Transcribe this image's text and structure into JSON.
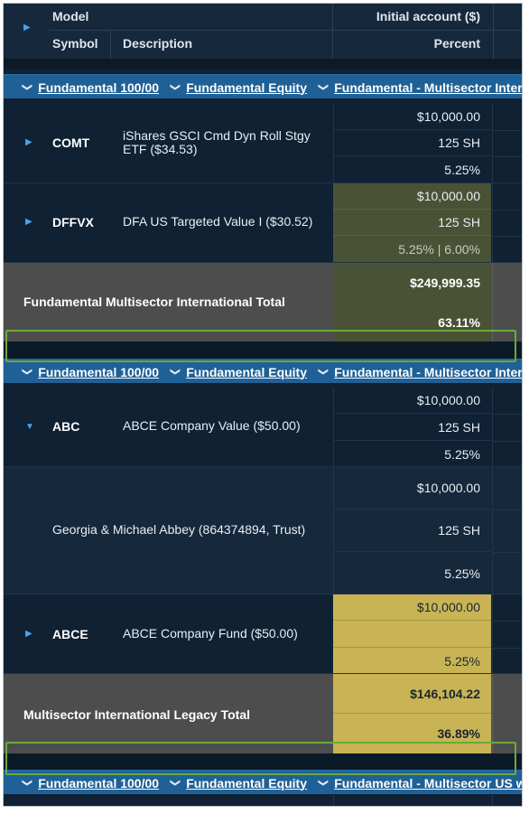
{
  "header": {
    "model": "Model",
    "initial_account": "Initial account ($)",
    "symbol": "Symbol",
    "description": "Description",
    "percent": "Percent"
  },
  "groups": [
    {
      "l1": "Fundamental 100/00",
      "l2": "Fundamental Equity",
      "l3": "Fundamental - Multisector Inter"
    },
    {
      "l1": "Fundamental 100/00",
      "l2": "Fundamental Equity",
      "l3": "Fundamental - Multisector Inter"
    },
    {
      "l1": "Fundamental 100/00",
      "l2": "Fundamental Equity",
      "l3": "Fundamental - Multisector US w"
    }
  ],
  "rows": {
    "comt": {
      "symbol": "COMT",
      "description": "iShares GSCI Cmd Dyn Roll Stgy ETF ($34.53)",
      "amount": "$10,000.00",
      "shares": "125 SH",
      "percent": "5.25%"
    },
    "dffvx": {
      "symbol": "DFFVX",
      "description": "DFA US Targeted Value I ($30.52)",
      "amount": "$10,000.00",
      "shares": "125 SH",
      "percent": "5.25% | 6.00%"
    },
    "abc": {
      "symbol": "ABC",
      "description": "ABCE Company Value ($50.00)",
      "amount": "$10,000.00",
      "shares": "125 SH",
      "percent": "5.25%"
    },
    "abbey": {
      "description": "Georgia & Michael Abbey (864374894, Trust)",
      "amount": "$10,000.00",
      "shares": "125 SH",
      "percent": "5.25%"
    },
    "abce": {
      "symbol": "ABCE",
      "description": "ABCE Company Fund ($50.00)",
      "amount": "$10,000.00",
      "percent": "5.25%"
    }
  },
  "totals": {
    "multisector_intl": {
      "label": "Fundamental Multisector International Total",
      "amount": "$249,999.35",
      "percent": "63.11%"
    },
    "legacy": {
      "label": "Multisector International Legacy Total",
      "amount": "$146,104.22",
      "percent": "36.89%"
    }
  },
  "icons": {
    "expand": "chevron-right-icon",
    "collapse": "chevron-down-icon"
  },
  "colors": {
    "group_bar": "#1f6196",
    "row_bg": "#0f2133",
    "total_bg": "#4d4d4d",
    "olive_cell": "#4a5236",
    "gold_cell": "#c8b454",
    "highlight": "#6aab3a"
  }
}
